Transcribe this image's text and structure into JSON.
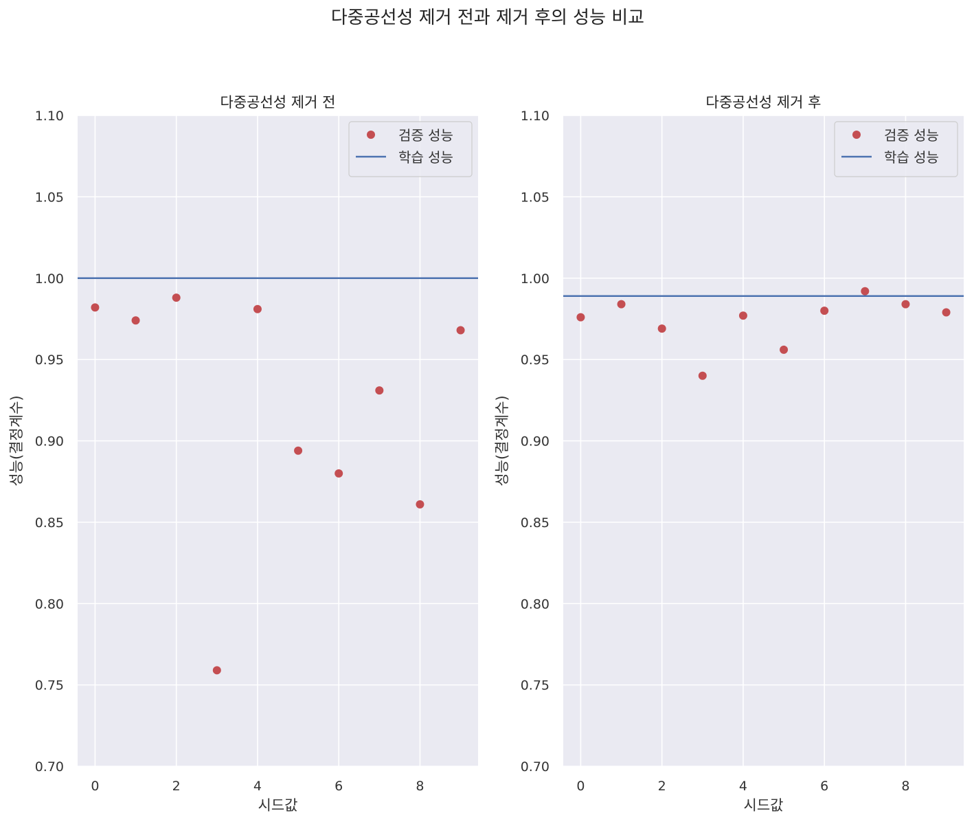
{
  "suptitle": "다중공선성 제거 전과 제거 후의 성능 비교",
  "colors": {
    "background": "#eaeaf2",
    "grid": "#ffffff",
    "point": "#c44e52",
    "line": "#4c72b0"
  },
  "chart_data": [
    {
      "type": "scatter",
      "title": "다중공선성 제거 전",
      "xlabel": "시드값",
      "ylabel": "성능(결정계수)",
      "xlim": [
        -0.43,
        9.43
      ],
      "ylim": [
        0.7,
        1.1
      ],
      "xticks": [
        0,
        2,
        4,
        6,
        8
      ],
      "yticks": [
        0.7,
        0.75,
        0.8,
        0.85,
        0.9,
        0.95,
        1.0,
        1.05,
        1.1
      ],
      "ytick_labels": [
        "0.70",
        "0.75",
        "0.80",
        "0.85",
        "0.90",
        "0.95",
        "1.00",
        "1.05",
        "1.10"
      ],
      "grid": true,
      "legend": {
        "position": "top-right",
        "entries": [
          "검증 성능",
          "학습 성능"
        ]
      },
      "series": [
        {
          "name": "검증 성능",
          "kind": "scatter",
          "x": [
            0,
            1,
            2,
            3,
            4,
            5,
            6,
            7,
            8,
            9
          ],
          "y": [
            0.982,
            0.974,
            0.988,
            0.759,
            0.981,
            0.894,
            0.88,
            0.931,
            0.861,
            0.968
          ]
        },
        {
          "name": "학습 성능",
          "kind": "hline",
          "y": 1.0
        }
      ]
    },
    {
      "type": "scatter",
      "title": "다중공선성 제거 후",
      "xlabel": "시드값",
      "ylabel": "성능(결정계수)",
      "xlim": [
        -0.43,
        9.43
      ],
      "ylim": [
        0.7,
        1.1
      ],
      "xticks": [
        0,
        2,
        4,
        6,
        8
      ],
      "yticks": [
        0.7,
        0.75,
        0.8,
        0.85,
        0.9,
        0.95,
        1.0,
        1.05,
        1.1
      ],
      "ytick_labels": [
        "0.70",
        "0.75",
        "0.80",
        "0.85",
        "0.90",
        "0.95",
        "1.00",
        "1.05",
        "1.10"
      ],
      "grid": true,
      "legend": {
        "position": "top-right",
        "entries": [
          "검증 성능",
          "학습 성능"
        ]
      },
      "series": [
        {
          "name": "검증 성능",
          "kind": "scatter",
          "x": [
            0,
            1,
            2,
            3,
            4,
            5,
            6,
            7,
            8,
            9
          ],
          "y": [
            0.976,
            0.984,
            0.969,
            0.94,
            0.977,
            0.956,
            0.98,
            0.992,
            0.984,
            0.979
          ]
        },
        {
          "name": "학습 성능",
          "kind": "hline",
          "y": 0.989
        }
      ]
    }
  ]
}
